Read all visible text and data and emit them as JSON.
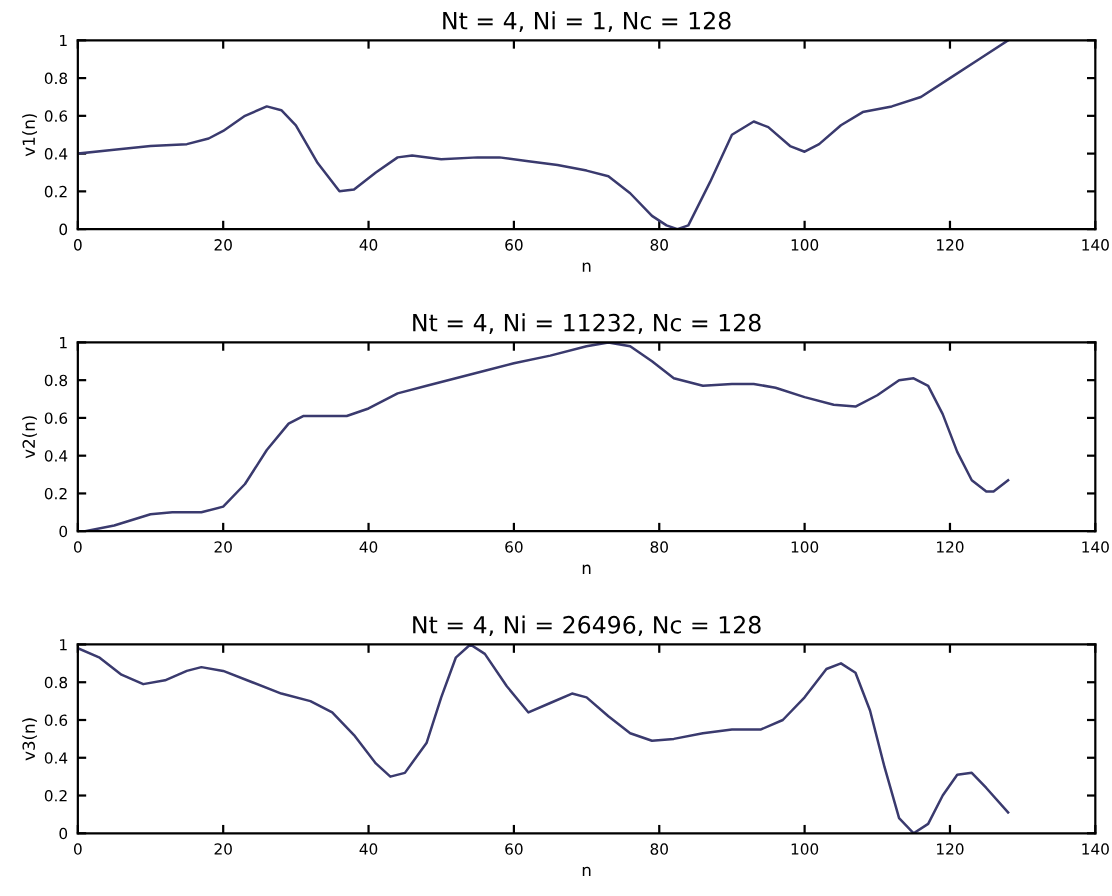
{
  "chart_data": [
    {
      "type": "line",
      "title": "Nt = 4, Ni = 1, Nc = 128",
      "xlabel": "n",
      "ylabel": "v1(n)",
      "xlim": [
        0,
        140
      ],
      "ylim": [
        0,
        1
      ],
      "xticks": [
        0,
        20,
        40,
        60,
        80,
        100,
        120,
        140
      ],
      "yticks": [
        0,
        0.2,
        0.4,
        0.6,
        0.8,
        1
      ],
      "series": [
        {
          "color": "#3a3a6e",
          "x": [
            0,
            5,
            10,
            15,
            18,
            20,
            23,
            26,
            28,
            30,
            33,
            36,
            38,
            41,
            44,
            46,
            50,
            55,
            58,
            62,
            66,
            70,
            73,
            76,
            79,
            81,
            82.5,
            84,
            87,
            90,
            93,
            95,
            98,
            100,
            102,
            105,
            108,
            112,
            116,
            120,
            124,
            128
          ],
          "values": [
            0.4,
            0.42,
            0.44,
            0.45,
            0.48,
            0.52,
            0.6,
            0.65,
            0.63,
            0.55,
            0.35,
            0.2,
            0.21,
            0.3,
            0.38,
            0.39,
            0.37,
            0.38,
            0.38,
            0.36,
            0.34,
            0.31,
            0.28,
            0.19,
            0.07,
            0.02,
            0.0,
            0.02,
            0.25,
            0.5,
            0.57,
            0.54,
            0.44,
            0.41,
            0.45,
            0.55,
            0.62,
            0.65,
            0.7,
            0.8,
            0.9,
            1.0
          ]
        }
      ]
    },
    {
      "type": "line",
      "title": "Nt = 4, Ni = 11232, Nc = 128",
      "xlabel": "n",
      "ylabel": "v2(n)",
      "xlim": [
        0,
        140
      ],
      "ylim": [
        0,
        1
      ],
      "xticks": [
        0,
        20,
        40,
        60,
        80,
        100,
        120,
        140
      ],
      "yticks": [
        0,
        0.2,
        0.4,
        0.6,
        0.8,
        1
      ],
      "series": [
        {
          "color": "#3a3a6e",
          "x": [
            1,
            5,
            10,
            13,
            17,
            20,
            23,
            26,
            29,
            31,
            34,
            37,
            40,
            44,
            48,
            52,
            56,
            60,
            65,
            70,
            73,
            76,
            79,
            82,
            86,
            90,
            93,
            96,
            100,
            104,
            107,
            110,
            113,
            115,
            117,
            119,
            121,
            123,
            125,
            126,
            128
          ],
          "values": [
            0.0,
            0.03,
            0.09,
            0.1,
            0.1,
            0.13,
            0.25,
            0.43,
            0.57,
            0.61,
            0.61,
            0.61,
            0.65,
            0.73,
            0.77,
            0.81,
            0.85,
            0.89,
            0.93,
            0.98,
            1.0,
            0.98,
            0.9,
            0.81,
            0.77,
            0.78,
            0.78,
            0.76,
            0.71,
            0.67,
            0.66,
            0.72,
            0.8,
            0.81,
            0.77,
            0.62,
            0.42,
            0.27,
            0.21,
            0.21,
            0.27
          ]
        }
      ]
    },
    {
      "type": "line",
      "title": "Nt = 4, Ni = 26496, Nc = 128",
      "xlabel": "n",
      "ylabel": "v3(n)",
      "xlim": [
        0,
        140
      ],
      "ylim": [
        0,
        1
      ],
      "xticks": [
        0,
        20,
        40,
        60,
        80,
        100,
        120,
        140
      ],
      "yticks": [
        0,
        0.2,
        0.4,
        0.6,
        0.8,
        1
      ],
      "series": [
        {
          "color": "#3a3a6e",
          "x": [
            0,
            3,
            6,
            9,
            12,
            15,
            17,
            20,
            24,
            28,
            32,
            35,
            38,
            41,
            43,
            45,
            48,
            50,
            52,
            54,
            56,
            59,
            62,
            65,
            68,
            70,
            73,
            76,
            79,
            82,
            86,
            90,
            94,
            97,
            100,
            103,
            105,
            107,
            109,
            111,
            113,
            115,
            117,
            119,
            121,
            123,
            125,
            128
          ],
          "values": [
            0.98,
            0.93,
            0.84,
            0.79,
            0.81,
            0.86,
            0.88,
            0.86,
            0.8,
            0.74,
            0.7,
            0.64,
            0.52,
            0.37,
            0.3,
            0.32,
            0.48,
            0.72,
            0.93,
            1.0,
            0.95,
            0.78,
            0.64,
            0.69,
            0.74,
            0.72,
            0.62,
            0.53,
            0.49,
            0.5,
            0.53,
            0.55,
            0.55,
            0.6,
            0.72,
            0.87,
            0.9,
            0.85,
            0.65,
            0.35,
            0.08,
            0.0,
            0.05,
            0.2,
            0.31,
            0.32,
            0.24,
            0.11
          ]
        }
      ]
    }
  ]
}
